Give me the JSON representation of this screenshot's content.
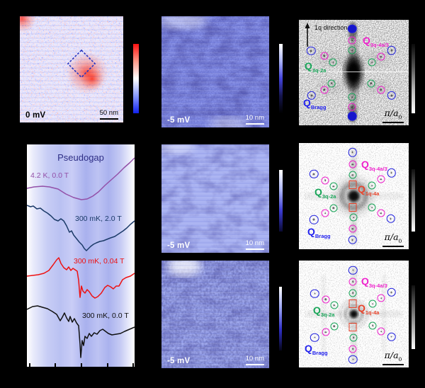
{
  "colors": {
    "background": "#000000",
    "bragg_blue": "#2222dd",
    "pink": "#ee22cc",
    "green": "#18a558",
    "red_orange": "#e8432a",
    "pseudogap_title": "#2e2e85",
    "roi_box": "#2030c0"
  },
  "colorbars": {
    "a": [
      "#ff1111",
      "#ff9988",
      "#ffffff",
      "#8899ff",
      "#1122ee"
    ],
    "b": [
      "#ffffff",
      "#aab2f5",
      "#4444dd",
      "#15154d",
      "#000000"
    ],
    "c": [
      "#0a0a0a",
      "#555555",
      "#bbbbbb",
      "#ffffff"
    ],
    "e": [
      "#ffffff",
      "#aab2f5",
      "#3a3ad0",
      "#0a0a33"
    ],
    "f": [
      "#111111",
      "#888888",
      "#ffffff"
    ],
    "g": [
      "#ffffff",
      "#9aa3f2",
      "#3030c8",
      "#050518"
    ],
    "h": [
      "#111111",
      "#888888",
      "#ffffff"
    ]
  },
  "panels": {
    "a": {
      "bias": "0 mV",
      "scalebar": "50 nm",
      "roi_box": "dashed blue square"
    },
    "b": {
      "bias": "-5 mV",
      "scalebar": "10 nm"
    },
    "e": {
      "bias": "-5 mV",
      "scalebar": "10 nm"
    },
    "g": {
      "bias": "-5 mV",
      "scalebar": "10 nm"
    },
    "c": {
      "direction_label": "1q direction",
      "pi_label": "π/a",
      "pi_sub": "0",
      "q_pink_main": "Q",
      "q_pink_sub": "3q-4a/3",
      "q_green_main": "Q",
      "q_green_sub": "3q-2a",
      "q_bragg_main": "Q",
      "q_bragg_sub": "Bragg",
      "markers": [
        {
          "c": "blue",
          "t": "disc",
          "x": 48.4,
          "y": 8.7
        },
        {
          "c": "magenta",
          "t": "ring",
          "x": 48.7,
          "y": 19.5
        },
        {
          "c": "green",
          "t": "ring",
          "x": 48.7,
          "y": 28.9
        },
        {
          "c": "blue",
          "t": "ring",
          "x": 11.0,
          "y": 29.5
        },
        {
          "c": "magenta",
          "t": "ring",
          "x": 23.2,
          "y": 34.2
        },
        {
          "c": "green",
          "t": "ring",
          "x": 31.0,
          "y": 40.3
        },
        {
          "c": "blue",
          "t": "ring",
          "x": 84.5,
          "y": 28.9
        },
        {
          "c": "magenta",
          "t": "ring",
          "x": 74.8,
          "y": 34.9
        },
        {
          "c": "green",
          "t": "ring",
          "x": 66.5,
          "y": 40.3
        },
        {
          "c": "green",
          "t": "ring",
          "x": 29.7,
          "y": 60.4
        },
        {
          "c": "magenta",
          "t": "ring",
          "x": 23.2,
          "y": 66.4
        },
        {
          "c": "blue",
          "t": "ring",
          "x": 11.6,
          "y": 71.8
        },
        {
          "c": "green",
          "t": "ring",
          "x": 65.8,
          "y": 60.4
        },
        {
          "c": "magenta",
          "t": "ring",
          "x": 74.8,
          "y": 66.4
        },
        {
          "c": "blue",
          "t": "ring",
          "x": 84.5,
          "y": 71.8
        },
        {
          "c": "green",
          "t": "ring",
          "x": 48.4,
          "y": 73.2
        },
        {
          "c": "magenta",
          "t": "ring",
          "x": 48.4,
          "y": 82.6
        },
        {
          "c": "blue",
          "t": "disc",
          "x": 48.4,
          "y": 91.3
        }
      ]
    },
    "f": {
      "pi_label": "π/a",
      "pi_sub": "0",
      "q_pink_main": "Q",
      "q_pink_sub": "3q-4a/3",
      "q_green_main": "Q",
      "q_green_sub": "3q-2a",
      "q_red_main": "Q",
      "q_red_sub": "1q-4a",
      "q_bragg_main": "Q",
      "q_bragg_sub": "Bragg",
      "markers": [
        {
          "c": "blue",
          "t": "ring",
          "x": 48.8,
          "y": 8.7
        },
        {
          "c": "magenta",
          "t": "ring",
          "x": 48.8,
          "y": 20.0
        },
        {
          "c": "green",
          "t": "ring",
          "x": 49.0,
          "y": 30.0
        },
        {
          "c": "red",
          "t": "square",
          "x": 48.8,
          "y": 39.3
        },
        {
          "c": "red",
          "t": "square",
          "x": 48.8,
          "y": 60.7
        },
        {
          "c": "green",
          "t": "ring",
          "x": 49.7,
          "y": 70.0
        },
        {
          "c": "magenta",
          "t": "ring",
          "x": 48.8,
          "y": 80.7
        },
        {
          "c": "blue",
          "t": "ring",
          "x": 48.8,
          "y": 91.3
        },
        {
          "c": "blue",
          "t": "ring",
          "x": 13.7,
          "y": 29.3
        },
        {
          "c": "magenta",
          "t": "ring",
          "x": 24.1,
          "y": 35.3
        },
        {
          "c": "green",
          "t": "ring",
          "x": 31.6,
          "y": 40.7
        },
        {
          "c": "green",
          "t": "ring",
          "x": 31.6,
          "y": 61.3
        },
        {
          "c": "magenta",
          "t": "ring",
          "x": 24.1,
          "y": 66.0
        },
        {
          "c": "blue",
          "t": "ring",
          "x": 13.7,
          "y": 72.0
        },
        {
          "c": "blue",
          "t": "ring",
          "x": 84.3,
          "y": 28.0
        },
        {
          "c": "magenta",
          "t": "ring",
          "x": 74.6,
          "y": 34.0
        },
        {
          "c": "green",
          "t": "ring",
          "x": 66.5,
          "y": 40.0
        },
        {
          "c": "green",
          "t": "ring",
          "x": 66.5,
          "y": 60.7
        },
        {
          "c": "magenta",
          "t": "ring",
          "x": 74.6,
          "y": 66.0
        },
        {
          "c": "blue",
          "t": "ring",
          "x": 83.7,
          "y": 71.3
        }
      ]
    },
    "h": {
      "pi_label": "π/a",
      "pi_sub": "0",
      "q_pink_main": "Q",
      "q_pink_sub": "3q-4a/3",
      "q_green_main": "Q",
      "q_green_sub": "3q-2a",
      "q_red_main": "Q",
      "q_red_sub": "1q-4a",
      "q_bragg_main": "Q",
      "q_bragg_sub": "Bragg",
      "markers": [
        {
          "c": "blue",
          "t": "ring",
          "x": 49.2,
          "y": 9.1
        },
        {
          "c": "magenta",
          "t": "ring",
          "x": 49.2,
          "y": 19.8
        },
        {
          "c": "green",
          "t": "ring",
          "x": 49.2,
          "y": 30.2
        },
        {
          "c": "red",
          "t": "square",
          "x": 49.2,
          "y": 40.7
        },
        {
          "c": "red",
          "t": "square",
          "x": 49.2,
          "y": 62.0
        },
        {
          "c": "green",
          "t": "ring",
          "x": 49.7,
          "y": 72.0
        },
        {
          "c": "magenta",
          "t": "ring",
          "x": 49.2,
          "y": 82.5
        },
        {
          "c": "blue",
          "t": "ring",
          "x": 49.2,
          "y": 92.5
        },
        {
          "c": "blue",
          "t": "ring",
          "x": 14.4,
          "y": 30.9
        },
        {
          "c": "magenta",
          "t": "ring",
          "x": 24.5,
          "y": 36.2
        },
        {
          "c": "green",
          "t": "ring",
          "x": 32.1,
          "y": 41.8
        },
        {
          "c": "green",
          "t": "ring",
          "x": 32.1,
          "y": 61.3
        },
        {
          "c": "magenta",
          "t": "ring",
          "x": 24.5,
          "y": 66.9
        },
        {
          "c": "blue",
          "t": "ring",
          "x": 14.4,
          "y": 72.0
        },
        {
          "c": "blue",
          "t": "ring",
          "x": 84.3,
          "y": 29.8
        },
        {
          "c": "magenta",
          "t": "ring",
          "x": 75.0,
          "y": 35.1
        },
        {
          "c": "green",
          "t": "ring",
          "x": 67.1,
          "y": 40.7
        },
        {
          "c": "green",
          "t": "ring",
          "x": 67.1,
          "y": 60.9
        },
        {
          "c": "magenta",
          "t": "ring",
          "x": 75.0,
          "y": 66.4
        },
        {
          "c": "blue",
          "t": "ring",
          "x": 84.3,
          "y": 71.3
        }
      ]
    },
    "d": {
      "title": "Pseudogap"
    }
  },
  "chart_data": {
    "type": "line",
    "title": "Pseudogap",
    "xlabel": "",
    "ylabel": "",
    "note": "dI/dV spectra, vertically offset; x-axis has 5 unlabeled ticks; no numeric axis labels visible in crop",
    "x_axis_ticks": 5,
    "coordinate_space": "panel-local pixels, 152 wide x 314 tall, y increases downward",
    "series": [
      {
        "name": "4.2 K, 0.0 T",
        "color": "#9350a8",
        "points": [
          [
            0,
            62
          ],
          [
            10,
            60
          ],
          [
            22,
            59
          ],
          [
            32,
            60
          ],
          [
            44,
            63
          ],
          [
            55,
            70
          ],
          [
            66,
            75
          ],
          [
            77,
            78
          ],
          [
            85,
            77
          ],
          [
            93,
            73
          ],
          [
            101,
            67
          ],
          [
            110,
            58
          ],
          [
            119,
            50
          ],
          [
            128,
            42
          ],
          [
            137,
            33
          ],
          [
            145,
            26
          ],
          [
            152,
            19
          ]
        ]
      },
      {
        "name": "300 mK, 2.0 T",
        "color": "#1b3a68",
        "points": [
          [
            0,
            86
          ],
          [
            5,
            88
          ],
          [
            9,
            87
          ],
          [
            14,
            91
          ],
          [
            19,
            90
          ],
          [
            24,
            94
          ],
          [
            29,
            97
          ],
          [
            34,
            101
          ],
          [
            39,
            106
          ],
          [
            44,
            108
          ],
          [
            48,
            105
          ],
          [
            52,
            108
          ],
          [
            56,
            115
          ],
          [
            60,
            124
          ],
          [
            63,
            122
          ],
          [
            66,
            128
          ],
          [
            70,
            133
          ],
          [
            74,
            138
          ],
          [
            78,
            142
          ],
          [
            81,
            147
          ],
          [
            84,
            150
          ],
          [
            87,
            147
          ],
          [
            90,
            144
          ],
          [
            94,
            141
          ],
          [
            98,
            139
          ],
          [
            103,
            137
          ],
          [
            108,
            136
          ],
          [
            113,
            134
          ],
          [
            118,
            132
          ],
          [
            124,
            130
          ],
          [
            130,
            126
          ],
          [
            136,
            122
          ],
          [
            141,
            118
          ],
          [
            146,
            113
          ],
          [
            152,
            108
          ]
        ]
      },
      {
        "name": "300 mK, 0.04 T",
        "color": "#ee1111",
        "points": [
          [
            0,
            186
          ],
          [
            8,
            185
          ],
          [
            16,
            184
          ],
          [
            24,
            182
          ],
          [
            31,
            178
          ],
          [
            37,
            170
          ],
          [
            42,
            163
          ],
          [
            45,
            160
          ],
          [
            48,
            168
          ],
          [
            52,
            174
          ],
          [
            56,
            177
          ],
          [
            59,
            173
          ],
          [
            62,
            178
          ],
          [
            65,
            175
          ],
          [
            68,
            177
          ],
          [
            71,
            179
          ],
          [
            73,
            192
          ],
          [
            75,
            216
          ],
          [
            77,
            200
          ],
          [
            79,
            207
          ],
          [
            82,
            210
          ],
          [
            85,
            205
          ],
          [
            88,
            208
          ],
          [
            92,
            214
          ],
          [
            96,
            217
          ],
          [
            100,
            215
          ],
          [
            105,
            210
          ],
          [
            110,
            202
          ],
          [
            114,
            199
          ],
          [
            118,
            201
          ],
          [
            122,
            204
          ],
          [
            126,
            200
          ],
          [
            130,
            200
          ],
          [
            135,
            191
          ],
          [
            140,
            188
          ],
          [
            146,
            186
          ],
          [
            152,
            182
          ]
        ]
      },
      {
        "name": "300 mK, 0.0 T",
        "color": "#111111",
        "points": [
          [
            0,
            233
          ],
          [
            8,
            229
          ],
          [
            15,
            228
          ],
          [
            22,
            230
          ],
          [
            29,
            232
          ],
          [
            36,
            236
          ],
          [
            42,
            240
          ],
          [
            47,
            249
          ],
          [
            50,
            244
          ],
          [
            53,
            238
          ],
          [
            56,
            245
          ],
          [
            59,
            250
          ],
          [
            61,
            243
          ],
          [
            64,
            251
          ],
          [
            67,
            246
          ],
          [
            70,
            252
          ],
          [
            73,
            256
          ],
          [
            75,
            282
          ],
          [
            76,
            301
          ],
          [
            78,
            277
          ],
          [
            80,
            284
          ],
          [
            82,
            271
          ],
          [
            85,
            274
          ],
          [
            88,
            267
          ],
          [
            91,
            271
          ],
          [
            95,
            266
          ],
          [
            99,
            268
          ],
          [
            103,
            263
          ],
          [
            107,
            261
          ],
          [
            111,
            264
          ],
          [
            115,
            267
          ],
          [
            120,
            269
          ],
          [
            126,
            268
          ],
          [
            132,
            267
          ],
          [
            138,
            264
          ],
          [
            145,
            261
          ],
          [
            152,
            258
          ]
        ]
      }
    ]
  }
}
